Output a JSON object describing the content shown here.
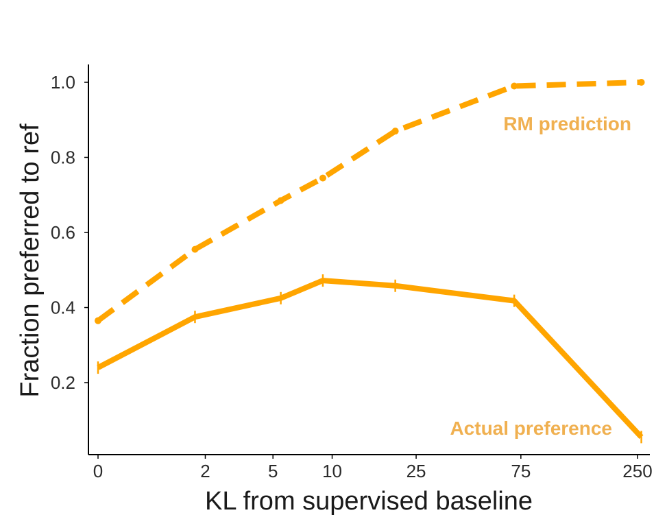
{
  "chart_data": {
    "type": "line",
    "xlabel": "KL from supervised baseline",
    "ylabel": "Fraction preferred to ref",
    "x_scale": "log1p",
    "x_ticks": [
      0,
      2,
      5,
      10,
      25,
      75,
      250
    ],
    "x_tick_labels": [
      "0",
      "2",
      "5",
      "10",
      "25",
      "75",
      "250"
    ],
    "y_ticks": [
      0.2,
      0.4,
      0.6,
      0.8,
      1.0
    ],
    "y_tick_labels": [
      "0.2",
      "0.4",
      "0.6",
      "0.8",
      "1.0"
    ],
    "ylim": [
      0.03,
      1.05
    ],
    "grid": false,
    "series": [
      {
        "name": "RM prediction",
        "style": "dashed",
        "color": "#FFA500",
        "label_color": "#F0B050",
        "x": [
          0,
          1.7,
          5.5,
          9,
          20,
          70,
          260
        ],
        "y": [
          0.365,
          0.555,
          0.685,
          0.745,
          0.87,
          0.99,
          1.0
        ]
      },
      {
        "name": "Actual preference",
        "style": "solid",
        "color": "#FFA500",
        "label_color": "#F0B050",
        "x": [
          0,
          1.7,
          5.5,
          9,
          20,
          70,
          260
        ],
        "y": [
          0.24,
          0.375,
          0.425,
          0.472,
          0.458,
          0.418,
          0.055
        ]
      }
    ]
  }
}
